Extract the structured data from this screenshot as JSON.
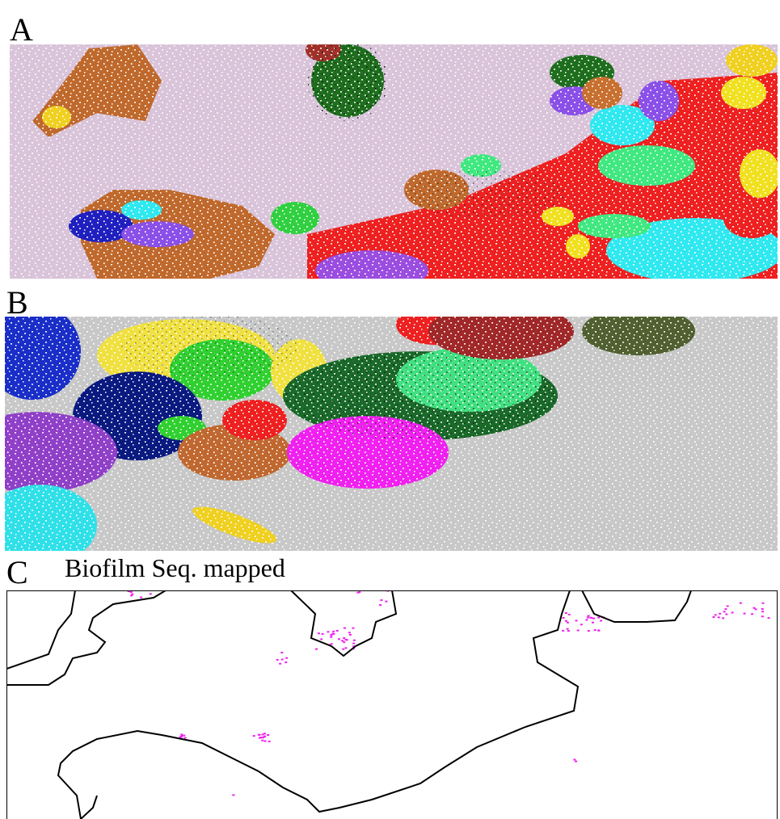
{
  "panels": [
    {
      "label": "A"
    },
    {
      "label": "B"
    },
    {
      "label": "C",
      "title": "Biofilm Seq. mapped"
    }
  ]
}
